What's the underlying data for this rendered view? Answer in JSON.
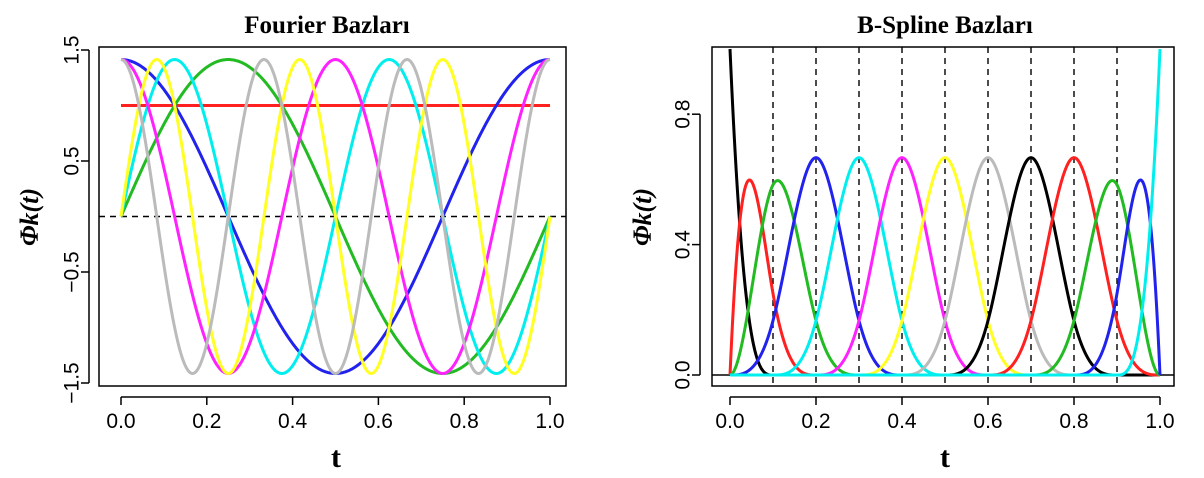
{
  "chart_data": [
    {
      "type": "line",
      "title": "Fourier Bazları",
      "xlabel": "t",
      "ylabel": "Φk(t)",
      "xlim": [
        0,
        1
      ],
      "ylim": [
        -1.5,
        1.5
      ],
      "xticks": [
        "0.0",
        "0.2",
        "0.4",
        "0.6",
        "0.8",
        "1.0"
      ],
      "yticks": [
        "-1.5",
        "-0.5",
        "0.5",
        "1.5"
      ],
      "reference_line": {
        "y": 0,
        "style": "dashed",
        "color": "#000000"
      },
      "grid": false,
      "legend": "none",
      "series": [
        {
          "basis": "constant",
          "value": 1.0,
          "color": "#ff2020"
        },
        {
          "basis": "sin",
          "k": 1,
          "color": "#22bb22"
        },
        {
          "basis": "cos",
          "k": 1,
          "color": "#2222ee"
        },
        {
          "basis": "sin",
          "k": 2,
          "color": "#00eeee"
        },
        {
          "basis": "cos",
          "k": 2,
          "color": "#ff22ff"
        },
        {
          "basis": "sin",
          "k": 3,
          "color": "#ffff22"
        },
        {
          "basis": "cos",
          "k": 3,
          "color": "#bbbbbb"
        }
      ]
    },
    {
      "type": "line",
      "title": "B-Spline Bazları",
      "xlabel": "t",
      "ylabel": "Φk(t)",
      "xlim": [
        0,
        1
      ],
      "ylim": [
        0,
        1
      ],
      "xticks": [
        "0.0",
        "0.2",
        "0.4",
        "0.6",
        "0.8",
        "1.0"
      ],
      "yticks": [
        "0.0",
        "0.4",
        "0.8"
      ],
      "knots": [
        0.1,
        0.2,
        0.3,
        0.4,
        0.5,
        0.6,
        0.7,
        0.8,
        0.9
      ],
      "order": 4,
      "reference_line": {
        "y": 0,
        "style": "solid",
        "color": "#000000"
      },
      "grid": false,
      "legend": "none",
      "series_colors": [
        "#000000",
        "#ff2020",
        "#22bb22",
        "#2222ee",
        "#00eeee",
        "#ff22ff",
        "#ffff22",
        "#bbbbbb",
        "#000000",
        "#ff2020",
        "#22bb22",
        "#2222ee",
        "#00eeee"
      ]
    }
  ]
}
